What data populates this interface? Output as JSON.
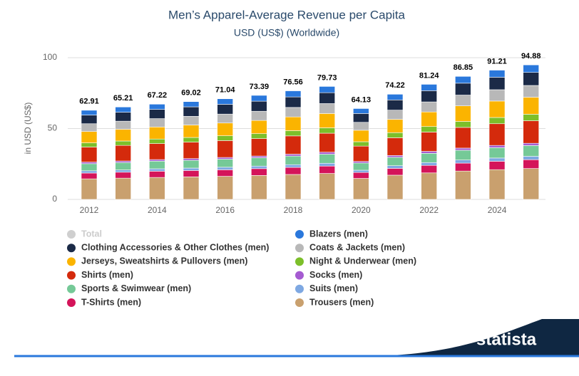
{
  "chart_data": {
    "type": "stacked_bar",
    "title": "Men’s Apparel-Average Revenue per Capita",
    "subtitle": "USD (US$) (Worldwide)",
    "y_label": "in USD (US$)",
    "categories": [
      "2012",
      null,
      "2014",
      null,
      "2016",
      null,
      "2018",
      null,
      "2020",
      null,
      "2022",
      null,
      "2024",
      null
    ],
    "ylim": [
      0,
      100
    ],
    "yticks": [
      0,
      50,
      100
    ],
    "grid": true,
    "series": [
      {
        "name": "Total",
        "color": "#cfcfcf",
        "hidden": true,
        "values": [
          62.91,
          65.21,
          67.22,
          69.02,
          71.04,
          73.39,
          76.56,
          79.73,
          64.13,
          74.22,
          81.24,
          86.85,
          91.21,
          94.88
        ]
      },
      {
        "name": "Blazers (men)",
        "color": "#2a78dc",
        "values": [
          3.4,
          3.7,
          3.7,
          3.7,
          3.9,
          4.1,
          4.3,
          4.4,
          3.5,
          4.0,
          4.5,
          4.8,
          5.0,
          5.3
        ]
      },
      {
        "name": "Clothing Accessories & Other Clothes (men)",
        "color": "#1b2a47",
        "values": [
          6.1,
          6.3,
          6.5,
          6.7,
          6.9,
          7.1,
          7.4,
          7.7,
          6.2,
          7.2,
          7.9,
          8.4,
          8.8,
          9.2
        ]
      },
      {
        "name": "Coats & Jackets (men)",
        "color": "#b8b8b8",
        "values": [
          5.5,
          5.7,
          5.9,
          6.1,
          6.3,
          6.5,
          6.7,
          7.0,
          5.6,
          6.5,
          7.1,
          7.6,
          8.0,
          8.3
        ]
      },
      {
        "name": "Jerseys, Sweatshirts & Pullovers (men)",
        "color": "#fbb400",
        "values": [
          8.0,
          8.3,
          8.5,
          8.8,
          9.0,
          9.3,
          9.7,
          10.1,
          8.1,
          9.4,
          10.3,
          11.0,
          11.6,
          12.0
        ]
      },
      {
        "name": "Night & Underwear (men)",
        "color": "#7cbf2a",
        "values": [
          3.0,
          3.1,
          3.2,
          3.3,
          3.4,
          3.5,
          3.7,
          3.8,
          3.1,
          3.6,
          3.9,
          4.2,
          4.4,
          4.6
        ]
      },
      {
        "name": "Shirts (men)",
        "color": "#d42a0c",
        "values": [
          10.6,
          11.0,
          11.3,
          11.6,
          11.9,
          12.3,
          12.9,
          13.4,
          10.8,
          12.5,
          13.6,
          14.6,
          15.3,
          15.9
        ]
      },
      {
        "name": "Socks (men)",
        "color": "#a55bd1",
        "values": [
          1.1,
          1.1,
          1.1,
          1.2,
          1.2,
          1.2,
          1.3,
          1.4,
          1.1,
          1.3,
          1.4,
          1.5,
          1.6,
          1.6
        ]
      },
      {
        "name": "Sports & Swimwear (men)",
        "color": "#75c997",
        "values": [
          5.0,
          5.2,
          5.4,
          5.5,
          5.7,
          5.9,
          6.1,
          6.4,
          5.1,
          5.9,
          6.5,
          6.9,
          7.3,
          7.6
        ]
      },
      {
        "name": "Suits (men)",
        "color": "#7ea8e2",
        "values": [
          1.6,
          1.6,
          1.7,
          1.7,
          1.8,
          1.8,
          1.9,
          2.0,
          1.6,
          1.9,
          2.0,
          2.2,
          2.3,
          2.4
        ]
      },
      {
        "name": "T-Shirts (men)",
        "color": "#d4145a",
        "values": [
          4.1,
          4.2,
          4.4,
          4.5,
          4.6,
          4.8,
          5.0,
          5.2,
          4.2,
          4.8,
          5.3,
          5.6,
          5.9,
          6.2
        ]
      },
      {
        "name": "Trousers (men)",
        "color": "#c9a06e",
        "values": [
          14.5,
          15.0,
          15.5,
          15.9,
          16.3,
          16.9,
          17.6,
          18.3,
          14.8,
          17.1,
          18.7,
          20.0,
          21.0,
          21.8
        ]
      }
    ]
  },
  "logo": "statista"
}
